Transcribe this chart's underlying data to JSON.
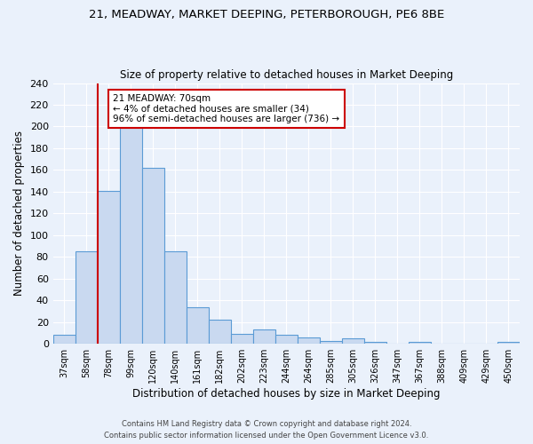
{
  "title1": "21, MEADWAY, MARKET DEEPING, PETERBOROUGH, PE6 8BE",
  "title2": "Size of property relative to detached houses in Market Deeping",
  "xlabel": "Distribution of detached houses by size in Market Deeping",
  "ylabel": "Number of detached properties",
  "categories": [
    "37sqm",
    "58sqm",
    "78sqm",
    "99sqm",
    "120sqm",
    "140sqm",
    "161sqm",
    "182sqm",
    "202sqm",
    "223sqm",
    "244sqm",
    "264sqm",
    "285sqm",
    "305sqm",
    "326sqm",
    "347sqm",
    "367sqm",
    "388sqm",
    "409sqm",
    "429sqm",
    "450sqm"
  ],
  "values": [
    8,
    85,
    141,
    200,
    162,
    85,
    34,
    22,
    9,
    13,
    8,
    6,
    3,
    5,
    2,
    0,
    2,
    0,
    0,
    0,
    2
  ],
  "bar_color": "#c9d9f0",
  "bar_edge_color": "#5b9bd5",
  "background_color": "#eaf1fb",
  "grid_color": "#ffffff",
  "vline_x": 1.5,
  "vline_color": "#cc0000",
  "annotation_text": "21 MEADWAY: 70sqm\n← 4% of detached houses are smaller (34)\n96% of semi-detached houses are larger (736) →",
  "annotation_box_color": "#ffffff",
  "annotation_box_edge_color": "#cc0000",
  "footer1": "Contains HM Land Registry data © Crown copyright and database right 2024.",
  "footer2": "Contains public sector information licensed under the Open Government Licence v3.0.",
  "ylim": [
    0,
    240
  ],
  "yticks": [
    0,
    20,
    40,
    60,
    80,
    100,
    120,
    140,
    160,
    180,
    200,
    220,
    240
  ]
}
